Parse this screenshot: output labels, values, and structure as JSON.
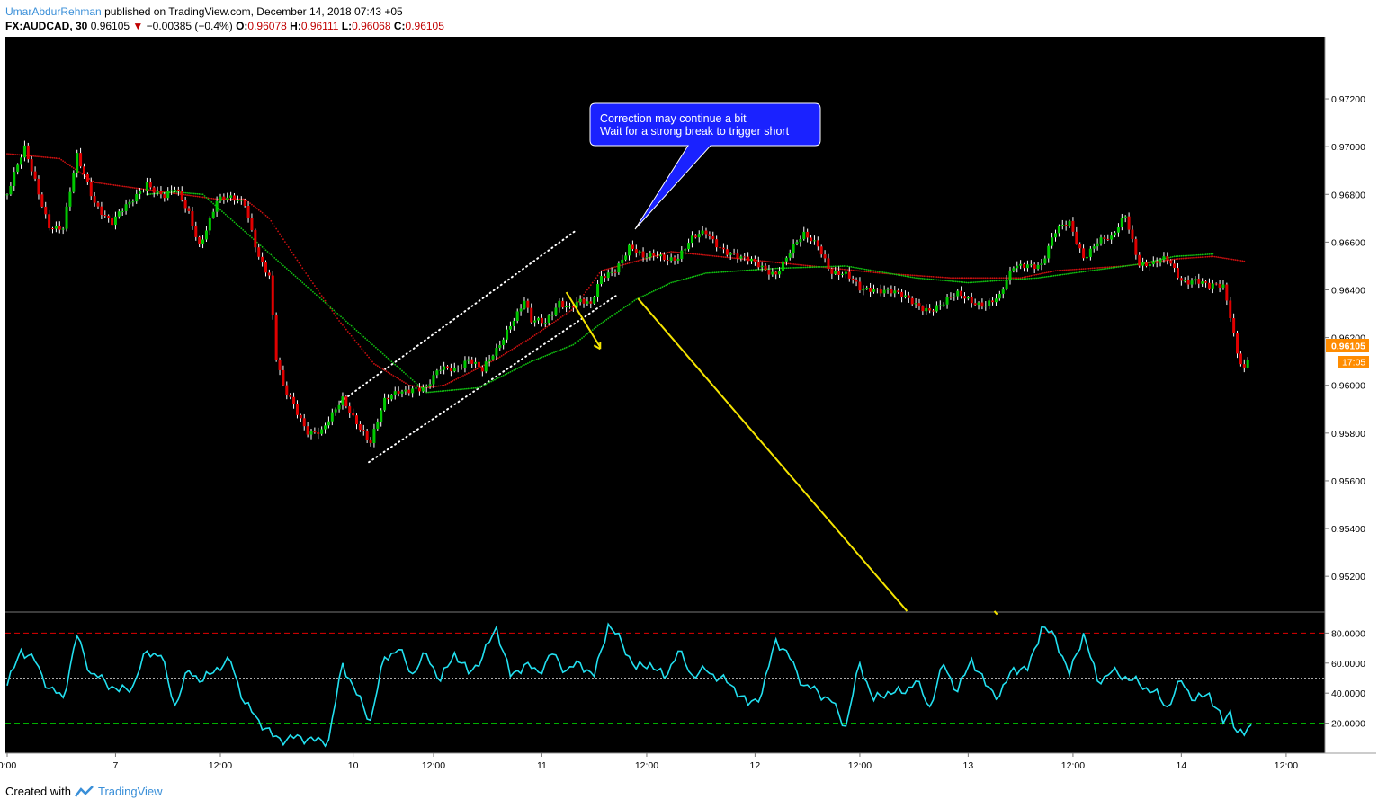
{
  "header": {
    "author": "UmarAbdurRehman",
    "published": "published on TradingView.com, December 14, 2018 07:43 +05",
    "symbol": "FX:AUDCAD, 30",
    "price": "0.96105",
    "change": "−0.00385 (−0.4%)",
    "o_label": "O:",
    "o_val": "0.96078",
    "h_label": "H:",
    "h_val": "0.96111",
    "l_label": "L:",
    "l_val": "0.96068",
    "c_label": "C:",
    "c_val": "0.96105"
  },
  "footer": {
    "created": "Created with",
    "brand": "TradingView"
  },
  "colors": {
    "background": "#000000",
    "up": "#00c800",
    "down": "#e00000",
    "ma_red": "#cc1010",
    "ma_green": "#10c010",
    "rsi": "#22e0f0",
    "annotation_bg": "#1a22ff",
    "arrow": "#f5e400",
    "price_tag": "#ff8c00"
  },
  "annotation": {
    "line1": "Correction may continue a bit",
    "line2": "Wait for a strong break to trigger short"
  },
  "price_tag": {
    "price": "0.96105",
    "countdown": "17:05"
  },
  "chart_data": [
    {
      "type": "candlestick",
      "symbol": "FX:AUDCAD",
      "timeframe": "30",
      "ylim": [
        0.9505,
        0.9746
      ],
      "y_ticks": [
        "0.97200",
        "0.97000",
        "0.96800",
        "0.96600",
        "0.96400",
        "0.96200",
        "0.96000",
        "0.95800",
        "0.95600",
        "0.95400",
        "0.95200"
      ],
      "x_ticks": [
        "0:00",
        "7",
        "12:00",
        "10",
        "12:00",
        "11",
        "12:00",
        "12",
        "12:00",
        "13",
        "12:00",
        "14",
        "12:00"
      ],
      "close_anchors": [
        [
          0,
          0.968
        ],
        [
          5,
          0.9698
        ],
        [
          8,
          0.9686
        ],
        [
          12,
          0.9668
        ],
        [
          16,
          0.9665
        ],
        [
          20,
          0.9695
        ],
        [
          25,
          0.9678
        ],
        [
          30,
          0.9668
        ],
        [
          35,
          0.9675
        ],
        [
          40,
          0.9686
        ],
        [
          45,
          0.9679
        ],
        [
          48,
          0.9681
        ],
        [
          52,
          0.9672
        ],
        [
          55,
          0.966
        ],
        [
          60,
          0.9677
        ],
        [
          64,
          0.9677
        ],
        [
          68,
          0.9677
        ],
        [
          72,
          0.9655
        ],
        [
          75,
          0.9645
        ],
        [
          77,
          0.961
        ],
        [
          79,
          0.9598
        ],
        [
          82,
          0.9592
        ],
        [
          86,
          0.9582
        ],
        [
          90,
          0.958
        ],
        [
          93,
          0.9586
        ],
        [
          96,
          0.9594
        ],
        [
          100,
          0.9586
        ],
        [
          104,
          0.9576
        ],
        [
          108,
          0.9592
        ],
        [
          112,
          0.9598
        ],
        [
          116,
          0.96
        ],
        [
          120,
          0.9598
        ],
        [
          124,
          0.9606
        ],
        [
          128,
          0.9608
        ],
        [
          132,
          0.9612
        ],
        [
          136,
          0.9605
        ],
        [
          140,
          0.9614
        ],
        [
          144,
          0.9627
        ],
        [
          148,
          0.9636
        ],
        [
          150,
          0.9626
        ],
        [
          154,
          0.9625
        ],
        [
          158,
          0.9636
        ],
        [
          161,
          0.9634
        ],
        [
          164,
          0.9635
        ],
        [
          167,
          0.9632
        ],
        [
          170,
          0.9645
        ],
        [
          174,
          0.965
        ],
        [
          178,
          0.9658
        ],
        [
          182,
          0.9652
        ],
        [
          186,
          0.9655
        ],
        [
          192,
          0.9654
        ],
        [
          196,
          0.966
        ],
        [
          200,
          0.9664
        ],
        [
          205,
          0.9658
        ],
        [
          210,
          0.9652
        ],
        [
          216,
          0.965
        ],
        [
          220,
          0.9648
        ],
        [
          224,
          0.9655
        ],
        [
          228,
          0.9662
        ],
        [
          232,
          0.966
        ],
        [
          236,
          0.9648
        ],
        [
          240,
          0.9645
        ],
        [
          244,
          0.964
        ],
        [
          248,
          0.9642
        ],
        [
          252,
          0.964
        ],
        [
          256,
          0.9636
        ],
        [
          260,
          0.9634
        ],
        [
          264,
          0.9633
        ],
        [
          268,
          0.9634
        ],
        [
          272,
          0.9637
        ],
        [
          276,
          0.9636
        ],
        [
          280,
          0.9635
        ],
        [
          284,
          0.9636
        ],
        [
          288,
          0.9649
        ],
        [
          292,
          0.9652
        ],
        [
          296,
          0.9651
        ],
        [
          300,
          0.9663
        ],
        [
          304,
          0.9668
        ],
        [
          308,
          0.9655
        ],
        [
          312,
          0.966
        ],
        [
          316,
          0.966
        ],
        [
          320,
          0.9672
        ],
        [
          324,
          0.9652
        ],
        [
          328,
          0.965
        ],
        [
          332,
          0.9652
        ],
        [
          336,
          0.9645
        ],
        [
          340,
          0.9645
        ],
        [
          344,
          0.964
        ],
        [
          348,
          0.9641
        ],
        [
          350,
          0.963
        ],
        [
          352,
          0.9615
        ],
        [
          354,
          0.9608
        ],
        [
          355,
          0.96105
        ]
      ],
      "ma_red_anchors": [
        [
          0,
          0.9697
        ],
        [
          15,
          0.9695
        ],
        [
          25,
          0.9685
        ],
        [
          40,
          0.9682
        ],
        [
          50,
          0.968
        ],
        [
          60,
          0.9678
        ],
        [
          68,
          0.9678
        ],
        [
          75,
          0.967
        ],
        [
          85,
          0.9648
        ],
        [
          95,
          0.9627
        ],
        [
          105,
          0.9609
        ],
        [
          115,
          0.96
        ],
        [
          120,
          0.9599
        ],
        [
          125,
          0.96
        ],
        [
          140,
          0.9611
        ],
        [
          150,
          0.962
        ],
        [
          162,
          0.9632
        ],
        [
          170,
          0.9648
        ],
        [
          190,
          0.9656
        ],
        [
          210,
          0.9653
        ],
        [
          230,
          0.965
        ],
        [
          250,
          0.9647
        ],
        [
          270,
          0.9645
        ],
        [
          290,
          0.9645
        ],
        [
          300,
          0.9648
        ],
        [
          320,
          0.965
        ],
        [
          335,
          0.9653
        ],
        [
          345,
          0.9654
        ],
        [
          354,
          0.9652
        ]
      ],
      "ma_green_anchors": [
        [
          40,
          0.968
        ],
        [
          48,
          0.9681
        ],
        [
          56,
          0.968
        ],
        [
          120,
          0.9597
        ],
        [
          135,
          0.9599
        ],
        [
          150,
          0.961
        ],
        [
          162,
          0.9617
        ],
        [
          170,
          0.9626
        ],
        [
          180,
          0.9636
        ],
        [
          190,
          0.9643
        ],
        [
          200,
          0.9647
        ],
        [
          220,
          0.9649
        ],
        [
          240,
          0.965
        ],
        [
          260,
          0.9645
        ],
        [
          275,
          0.9643
        ],
        [
          295,
          0.9645
        ],
        [
          310,
          0.9648
        ],
        [
          325,
          0.9651
        ],
        [
          334,
          0.9654
        ],
        [
          345,
          0.9655
        ]
      ]
    },
    {
      "type": "line",
      "name": "RSI",
      "ylim": [
        0,
        94
      ],
      "y_ticks": [
        "80.0000",
        "60.0000",
        "40.0000",
        "20.0000"
      ],
      "levels": [
        80,
        50,
        20
      ],
      "anchors": [
        [
          0,
          45
        ],
        [
          4,
          69
        ],
        [
          8,
          61
        ],
        [
          12,
          43
        ],
        [
          16,
          37
        ],
        [
          20,
          78
        ],
        [
          24,
          53
        ],
        [
          28,
          48
        ],
        [
          32,
          41
        ],
        [
          36,
          45
        ],
        [
          40,
          68
        ],
        [
          44,
          65
        ],
        [
          48,
          32
        ],
        [
          52,
          55
        ],
        [
          56,
          48
        ],
        [
          60,
          57
        ],
        [
          64,
          61
        ],
        [
          68,
          33
        ],
        [
          72,
          22
        ],
        [
          76,
          11
        ],
        [
          80,
          9
        ],
        [
          84,
          11
        ],
        [
          88,
          8
        ],
        [
          92,
          9
        ],
        [
          96,
          60
        ],
        [
          100,
          39
        ],
        [
          104,
          22
        ],
        [
          108,
          64
        ],
        [
          112,
          69
        ],
        [
          116,
          53
        ],
        [
          120,
          66
        ],
        [
          124,
          48
        ],
        [
          128,
          67
        ],
        [
          132,
          53
        ],
        [
          136,
          64
        ],
        [
          140,
          84
        ],
        [
          144,
          51
        ],
        [
          148,
          59
        ],
        [
          152,
          54
        ],
        [
          156,
          66
        ],
        [
          160,
          55
        ],
        [
          164,
          60
        ],
        [
          168,
          51
        ],
        [
          172,
          86
        ],
        [
          176,
          73
        ],
        [
          180,
          56
        ],
        [
          184,
          60
        ],
        [
          188,
          50
        ],
        [
          192,
          68
        ],
        [
          196,
          52
        ],
        [
          200,
          55
        ],
        [
          204,
          50
        ],
        [
          208,
          44
        ],
        [
          212,
          32
        ],
        [
          216,
          40
        ],
        [
          220,
          76
        ],
        [
          224,
          63
        ],
        [
          228,
          45
        ],
        [
          232,
          41
        ],
        [
          236,
          34
        ],
        [
          240,
          18
        ],
        [
          244,
          60
        ],
        [
          248,
          35
        ],
        [
          252,
          41
        ],
        [
          256,
          40
        ],
        [
          260,
          48
        ],
        [
          264,
          31
        ],
        [
          268,
          59
        ],
        [
          272,
          41
        ],
        [
          276,
          63
        ],
        [
          280,
          45
        ],
        [
          284,
          38
        ],
        [
          288,
          57
        ],
        [
          292,
          55
        ],
        [
          296,
          84
        ],
        [
          300,
          77
        ],
        [
          304,
          52
        ],
        [
          308,
          80
        ],
        [
          312,
          48
        ],
        [
          316,
          54
        ],
        [
          320,
          51
        ],
        [
          324,
          46
        ],
        [
          328,
          41
        ],
        [
          332,
          31
        ],
        [
          336,
          48
        ],
        [
          340,
          35
        ],
        [
          344,
          40
        ],
        [
          348,
          20
        ],
        [
          350,
          28
        ],
        [
          352,
          14
        ],
        [
          354,
          12
        ],
        [
          356,
          19
        ]
      ]
    }
  ]
}
